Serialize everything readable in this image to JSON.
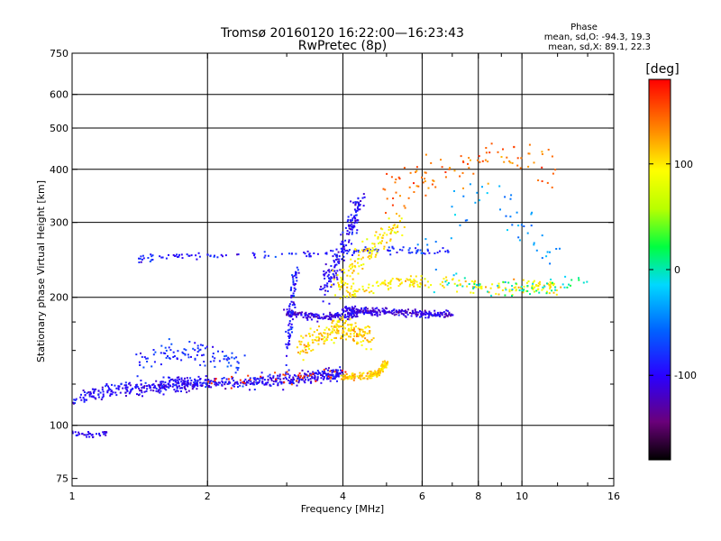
{
  "chart_data": {
    "type": "scatter",
    "title": "Tromsø 20160120 16:22:00—16:23:43",
    "subtitle": "RwPretec (8p)",
    "xlabel": "Frequency [MHz]",
    "ylabel": "Stationary phase Virtual Height [km]",
    "x_scale": "log",
    "y_scale": "log",
    "xlim": [
      1,
      16
    ],
    "ylim": [
      72,
      750
    ],
    "x_ticks": [
      1,
      2,
      4,
      6,
      8,
      10,
      16
    ],
    "x_tick_labels": [
      "1",
      "2",
      "4",
      "6",
      "8",
      "10",
      "16"
    ],
    "x_minor_ticks": [
      3,
      5,
      7,
      9,
      12,
      14
    ],
    "y_ticks": [
      75,
      100,
      200,
      300,
      400,
      500,
      600,
      750
    ],
    "y_tick_labels": [
      "75",
      "100",
      "200",
      "300",
      "400",
      "500",
      "600",
      "750"
    ],
    "y_minor_ticks": [
      125,
      150,
      175
    ],
    "grid": true,
    "stats": {
      "heading": "Phase",
      "o_mode": "mean, sd,O: -94.3, 19.3",
      "x_mode": "mean, sd,X:  89.1, 22.3"
    },
    "colorbar": {
      "label": "[deg]",
      "range": [
        -180,
        180
      ],
      "ticks": [
        100,
        0,
        -100
      ],
      "tick_labels": [
        "100",
        "0",
        "-100"
      ]
    },
    "traces": [
      {
        "x": [
          1.0,
          1.05,
          1.1,
          1.15,
          1.2
        ],
        "y": [
          96,
          95,
          95,
          95,
          96
        ],
        "phase": -100,
        "jx": 0.01,
        "jy": 1.2,
        "n": 35
      },
      {
        "x": [
          1.0,
          1.1,
          1.2,
          1.3,
          1.4,
          1.5,
          1.6,
          1.7,
          1.8,
          1.9,
          2.0,
          2.2,
          2.4,
          2.6,
          2.8,
          3.0,
          3.2,
          3.4,
          3.6,
          3.8,
          4.0
        ],
        "y": [
          113,
          118,
          121,
          122,
          122,
          123,
          124,
          125,
          125,
          126,
          126,
          126,
          126,
          127,
          127,
          128,
          129,
          130,
          131,
          132,
          133
        ],
        "phase": -100,
        "jx": 0.012,
        "jy": 4,
        "n": 600
      },
      {
        "x": [
          1.4,
          1.6,
          1.8,
          2.0,
          2.4,
          2.8,
          3.2,
          3.6,
          4.0,
          4.5,
          5.0,
          5.5,
          6.0,
          7.0
        ],
        "y": [
          247,
          249,
          250,
          250,
          250,
          251,
          252,
          254,
          256,
          258,
          258,
          258,
          258,
          258
        ],
        "phase": -90,
        "jx": 0.012,
        "jy": 4,
        "n": 150
      },
      {
        "x": [
          3.0,
          3.2,
          3.5,
          3.8,
          4.0,
          4.3
        ],
        "y": [
          185,
          182,
          180,
          180,
          181,
          182
        ],
        "phase": -110,
        "jx": 0.015,
        "jy": 3,
        "n": 150
      },
      {
        "x": [
          3.0,
          3.05,
          3.1,
          3.15
        ],
        "y": [
          145,
          170,
          200,
          230
        ],
        "phase": -90,
        "jx": 0.012,
        "jy": 10,
        "n": 80
      },
      {
        "x": [
          4.0,
          4.3,
          4.6,
          5.0,
          5.5,
          6.0,
          6.5,
          7.0
        ],
        "y": [
          188,
          186,
          185,
          185,
          184,
          183,
          182,
          182
        ],
        "phase": -110,
        "jx": 0.01,
        "jy": 3,
        "n": 250
      },
      {
        "x": [
          3.6,
          3.8,
          4.0,
          4.2,
          4.4
        ],
        "y": [
          210,
          230,
          260,
          300,
          345
        ],
        "phase": -100,
        "jx": 0.025,
        "jy": 15,
        "n": 170
      },
      {
        "x": [
          1.4,
          1.6,
          1.8,
          2.0,
          2.4
        ],
        "y": [
          140,
          148,
          150,
          148,
          140
        ],
        "phase": -80,
        "jx": 0.03,
        "jy": 8,
        "n": 100
      },
      {
        "x": [
          3.2,
          3.5,
          3.8,
          4.0,
          4.3,
          4.6
        ],
        "y": [
          150,
          160,
          168,
          170,
          165,
          160
        ],
        "phase": 110,
        "jx": 0.02,
        "jy": 8,
        "n": 200
      },
      {
        "x": [
          4.0,
          4.3,
          4.6,
          4.8,
          5.0
        ],
        "y": [
          130,
          130,
          131,
          133,
          140
        ],
        "phase": 110,
        "jx": 0.012,
        "jy": 2,
        "n": 160
      },
      {
        "x": [
          3.8,
          4.2,
          4.6,
          5.0,
          5.5
        ],
        "y": [
          210,
          230,
          260,
          280,
          300
        ],
        "phase": 100,
        "jx": 0.03,
        "jy": 15,
        "n": 130
      },
      {
        "x": [
          4.0,
          4.5,
          5.0,
          5.5,
          6.0,
          7.0,
          8.0,
          9.0,
          10.0,
          11.0,
          12.0
        ],
        "y": [
          200,
          210,
          215,
          220,
          215,
          215,
          212,
          212,
          212,
          212,
          212
        ],
        "phase": 100,
        "jx": 0.02,
        "jy": 6,
        "n": 200
      },
      {
        "x": [
          5.0,
          5.5,
          6.0,
          7.0,
          8.0,
          9.0,
          10.0,
          12.0
        ],
        "y": [
          350,
          360,
          380,
          400,
          420,
          440,
          430,
          400
        ],
        "phase": 140,
        "jx": 0.04,
        "jy": 40,
        "n": 100
      },
      {
        "x": [
          6.5,
          7.0,
          8.0,
          9.0,
          10.0,
          11.0,
          12.0,
          13.0,
          14.0
        ],
        "y": [
          215,
          220,
          212,
          210,
          210,
          211,
          213,
          215,
          215
        ],
        "phase": 0,
        "jx": 0.02,
        "jy": 8,
        "n": 60
      },
      {
        "x": [
          6.0,
          7.0,
          8.0,
          9.0,
          10.0,
          11.0,
          12.0
        ],
        "y": [
          250,
          300,
          350,
          330,
          300,
          280,
          260
        ],
        "phase": -40,
        "jx": 0.05,
        "jy": 40,
        "n": 50
      },
      {
        "x": [
          2.0,
          2.4,
          2.8,
          3.2,
          3.6,
          4.0
        ],
        "y": [
          125,
          127,
          129,
          130,
          132,
          133
        ],
        "phase": 160,
        "jx": 0.03,
        "jy": 4,
        "n": 40
      }
    ]
  }
}
